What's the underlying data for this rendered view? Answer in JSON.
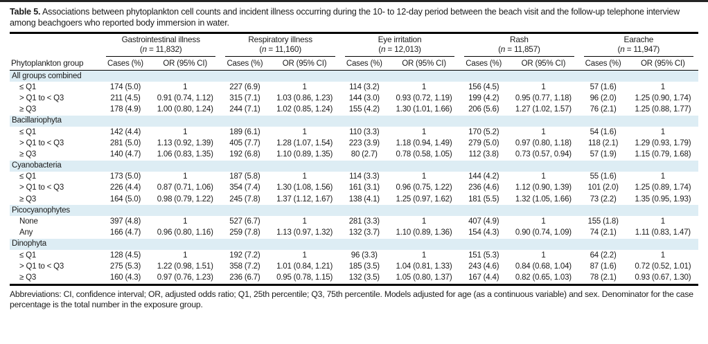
{
  "page": {
    "title_label": "Table 5.",
    "title_text": "Associations between phytoplankton cell counts and incident illness occurring during the 10- to 12-day period between the beach visit and the follow-up telephone interview among beachgoers who reported body immersion in water.",
    "footnote": "Abbreviations: CI, confidence interval; OR, adjusted odds ratio; Q1, 25th percentile; Q3, 75th percentile. Models adjusted for age (as a continuous variable) and sex. Denominator for the case percentage is the total number in the exposure group."
  },
  "colors": {
    "section_band": "#ddedf4",
    "rule": "#000000",
    "text": "#1a1a1a"
  },
  "table": {
    "row_header": "Phytoplankton group",
    "subheaders": {
      "cases": "Cases (%)",
      "or": "OR (95% CI)"
    },
    "groups": [
      {
        "name": "Gastrointestinal illness",
        "n": "11,832"
      },
      {
        "name": "Respiratory illness",
        "n": "11,160"
      },
      {
        "name": "Eye irritation",
        "n": "12,013"
      },
      {
        "name": "Rash",
        "n": "11,857"
      },
      {
        "name": "Earache",
        "n": "11,947"
      }
    ],
    "sections": [
      {
        "name": "All groups combined",
        "rows": [
          {
            "label": "≤ Q1",
            "values": [
              "174 (5.0)",
              "1",
              "227 (6.9)",
              "1",
              "114 (3.2)",
              "1",
              "156 (4.5)",
              "1",
              "57 (1.6)",
              "1"
            ]
          },
          {
            "label": "> Q1 to < Q3",
            "values": [
              "211 (4.5)",
              "0.91 (0.74, 1.12)",
              "315 (7.1)",
              "1.03 (0.86, 1.23)",
              "144 (3.0)",
              "0.93 (0.72, 1.19)",
              "199 (4.2)",
              "0.95 (0.77, 1.18)",
              "96 (2.0)",
              "1.25 (0.90, 1.74)"
            ]
          },
          {
            "label": "≥ Q3",
            "values": [
              "178 (4.9)",
              "1.00 (0.80, 1.24)",
              "244 (7.1)",
              "1.02 (0.85, 1.24)",
              "155 (4.2)",
              "1.30 (1.01, 1.66)",
              "206 (5.6)",
              "1.27 (1.02, 1.57)",
              "76 (2.1)",
              "1.25 (0.88, 1.77)"
            ]
          }
        ]
      },
      {
        "name": "Bacillariophyta",
        "rows": [
          {
            "label": "≤ Q1",
            "values": [
              "142 (4.4)",
              "1",
              "189 (6.1)",
              "1",
              "110 (3.3)",
              "1",
              "170 (5.2)",
              "1",
              "54 (1.6)",
              "1"
            ]
          },
          {
            "label": "> Q1 to < Q3",
            "values": [
              "281 (5.0)",
              "1.13 (0.92, 1.39)",
              "405 (7.7)",
              "1.28 (1.07, 1.54)",
              "223 (3.9)",
              "1.18 (0.94, 1.49)",
              "279 (5.0)",
              "0.97 (0.80, 1.18)",
              "118 (2.1)",
              "1.29 (0.93, 1.79)"
            ]
          },
          {
            "label": "≥ Q3",
            "values": [
              "140 (4.7)",
              "1.06 (0.83, 1.35)",
              "192 (6.8)",
              "1.10 (0.89, 1.35)",
              "80 (2.7)",
              "0.78 (0.58, 1.05)",
              "112 (3.8)",
              "0.73 (0.57, 0.94)",
              "57 (1.9)",
              "1.15 (0.79, 1.68)"
            ]
          }
        ]
      },
      {
        "name": "Cyanobacteria",
        "rows": [
          {
            "label": "≤ Q1",
            "values": [
              "173 (5.0)",
              "1",
              "187 (5.8)",
              "1",
              "114 (3.3)",
              "1",
              "144 (4.2)",
              "1",
              "55 (1.6)",
              "1"
            ]
          },
          {
            "label": "> Q1 to < Q3",
            "values": [
              "226 (4.4)",
              "0.87 (0.71, 1.06)",
              "354 (7.4)",
              "1.30 (1.08, 1.56)",
              "161 (3.1)",
              "0.96 (0.75, 1.22)",
              "236 (4.6)",
              "1.12 (0.90, 1.39)",
              "101 (2.0)",
              "1.25 (0.89, 1.74)"
            ]
          },
          {
            "label": "≥ Q3",
            "values": [
              "164 (5.0)",
              "0.98 (0.79, 1.22)",
              "245 (7.8)",
              "1.37 (1.12, 1.67)",
              "138 (4.1)",
              "1.25 (0.97, 1.62)",
              "181 (5.5)",
              "1.32 (1.05, 1.66)",
              "73 (2.2)",
              "1.35 (0.95, 1.93)"
            ]
          }
        ]
      },
      {
        "name": "Picocyanophytes",
        "rows": [
          {
            "label": "None",
            "values": [
              "397 (4.8)",
              "1",
              "527 (6.7)",
              "1",
              "281 (3.3)",
              "1",
              "407 (4.9)",
              "1",
              "155 (1.8)",
              "1"
            ]
          },
          {
            "label": "Any",
            "values": [
              "166 (4.7)",
              "0.96 (0.80, 1.16)",
              "259 (7.8)",
              "1.13 (0.97, 1.32)",
              "132 (3.7)",
              "1.10 (0.89, 1.36)",
              "154 (4.3)",
              "0.90 (0.74, 1.09)",
              "74 (2.1)",
              "1.11 (0.83, 1.47)"
            ]
          }
        ]
      },
      {
        "name": "Dinophyta",
        "rows": [
          {
            "label": "≤ Q1",
            "values": [
              "128 (4.5)",
              "1",
              "192 (7.2)",
              "1",
              "96 (3.3)",
              "1",
              "151 (5.3)",
              "1",
              "64 (2.2)",
              "1"
            ]
          },
          {
            "label": "> Q1 to < Q3",
            "values": [
              "275 (5.3)",
              "1.22 (0.98, 1.51)",
              "358 (7.2)",
              "1.01 (0.84, 1.21)",
              "185 (3.5)",
              "1.04 (0.81, 1.33)",
              "243 (4.6)",
              "0.84 (0.68, 1.04)",
              "87 (1.6)",
              "0.72 (0.52, 1.01)"
            ]
          },
          {
            "label": "≥ Q3",
            "values": [
              "160 (4.3)",
              "0.97 (0.76, 1.23)",
              "236 (6.7)",
              "0.95 (0.78, 1.15)",
              "132 (3.5)",
              "1.05 (0.80, 1.37)",
              "167 (4.4)",
              "0.82 (0.65, 1.03)",
              "78 (2.1)",
              "0.93 (0.67, 1.30)"
            ]
          }
        ]
      }
    ]
  }
}
